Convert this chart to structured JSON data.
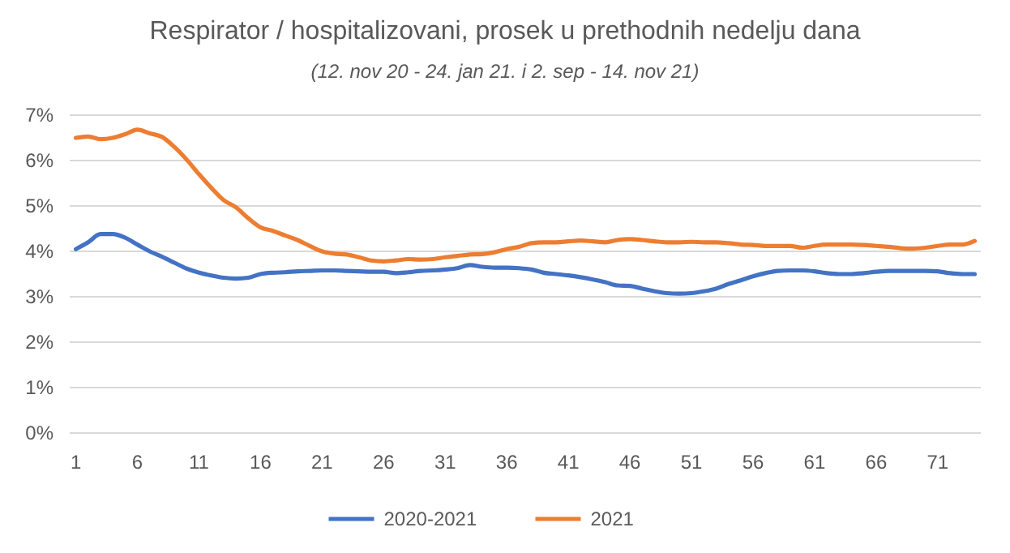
{
  "chart_data": {
    "type": "line",
    "title": "Respirator / hospitalizovani, prosek u prethodnih nedelju dana",
    "subtitle": "(12. nov 20 - 24. jan 21. i 2. sep - 14. nov 21)",
    "x": [
      1,
      2,
      3,
      4,
      5,
      6,
      7,
      8,
      9,
      10,
      11,
      12,
      13,
      14,
      15,
      16,
      17,
      18,
      19,
      20,
      21,
      22,
      23,
      24,
      25,
      26,
      27,
      28,
      29,
      30,
      31,
      32,
      33,
      34,
      35,
      36,
      37,
      38,
      39,
      40,
      41,
      42,
      43,
      44,
      45,
      46,
      47,
      48,
      49,
      50,
      51,
      52,
      53,
      54,
      55,
      56,
      57,
      58,
      59,
      60,
      61,
      62,
      63,
      64,
      65,
      66,
      67,
      68,
      69,
      70,
      71,
      72,
      73,
      74
    ],
    "xlim": [
      0.5,
      74.5
    ],
    "xticks": [
      1,
      6,
      11,
      16,
      21,
      26,
      31,
      36,
      41,
      46,
      51,
      56,
      61,
      66,
      71
    ],
    "series": [
      {
        "name": "2020-2021",
        "color": "#4472c4",
        "values": [
          4.05,
          4.2,
          4.38,
          4.38,
          4.3,
          4.15,
          4.0,
          3.88,
          3.75,
          3.62,
          3.53,
          3.47,
          3.42,
          3.4,
          3.42,
          3.5,
          3.53,
          3.54,
          3.56,
          3.57,
          3.58,
          3.58,
          3.57,
          3.56,
          3.55,
          3.55,
          3.52,
          3.54,
          3.57,
          3.58,
          3.6,
          3.63,
          3.7,
          3.66,
          3.64,
          3.64,
          3.63,
          3.6,
          3.53,
          3.5,
          3.47,
          3.43,
          3.38,
          3.32,
          3.25,
          3.24,
          3.18,
          3.12,
          3.08,
          3.07,
          3.08,
          3.12,
          3.18,
          3.28,
          3.36,
          3.45,
          3.52,
          3.57,
          3.58,
          3.58,
          3.56,
          3.52,
          3.5,
          3.5,
          3.52,
          3.55,
          3.57,
          3.57,
          3.57,
          3.57,
          3.56,
          3.52,
          3.5,
          3.5
        ]
      },
      {
        "name": "2021",
        "color": "#ed7d31",
        "values": [
          6.5,
          6.53,
          6.47,
          6.5,
          6.58,
          6.68,
          6.6,
          6.52,
          6.3,
          6.02,
          5.7,
          5.4,
          5.13,
          4.97,
          4.73,
          4.53,
          4.45,
          4.35,
          4.25,
          4.12,
          4.0,
          3.95,
          3.93,
          3.87,
          3.8,
          3.78,
          3.8,
          3.83,
          3.82,
          3.83,
          3.87,
          3.9,
          3.93,
          3.94,
          3.98,
          4.05,
          4.1,
          4.18,
          4.2,
          4.2,
          4.22,
          4.24,
          4.22,
          4.2,
          4.25,
          4.27,
          4.25,
          4.22,
          4.2,
          4.2,
          4.21,
          4.2,
          4.2,
          4.18,
          4.15,
          4.14,
          4.12,
          4.12,
          4.12,
          4.08,
          4.12,
          4.15,
          4.15,
          4.15,
          4.14,
          4.12,
          4.1,
          4.07,
          4.06,
          4.08,
          4.12,
          4.15,
          4.15,
          4.23
        ]
      }
    ],
    "ylim": [
      0,
      7
    ],
    "yticks": [
      {
        "value": 0,
        "label": "0%"
      },
      {
        "value": 1,
        "label": "1%"
      },
      {
        "value": 2,
        "label": "2%"
      },
      {
        "value": 3,
        "label": "3%"
      },
      {
        "value": 4,
        "label": "4%"
      },
      {
        "value": 5,
        "label": "5%"
      },
      {
        "value": 6,
        "label": "6%"
      },
      {
        "value": 7,
        "label": "7%"
      }
    ],
    "grid": "y",
    "legend": "bottom",
    "marker": "none",
    "line_style": "solid"
  }
}
